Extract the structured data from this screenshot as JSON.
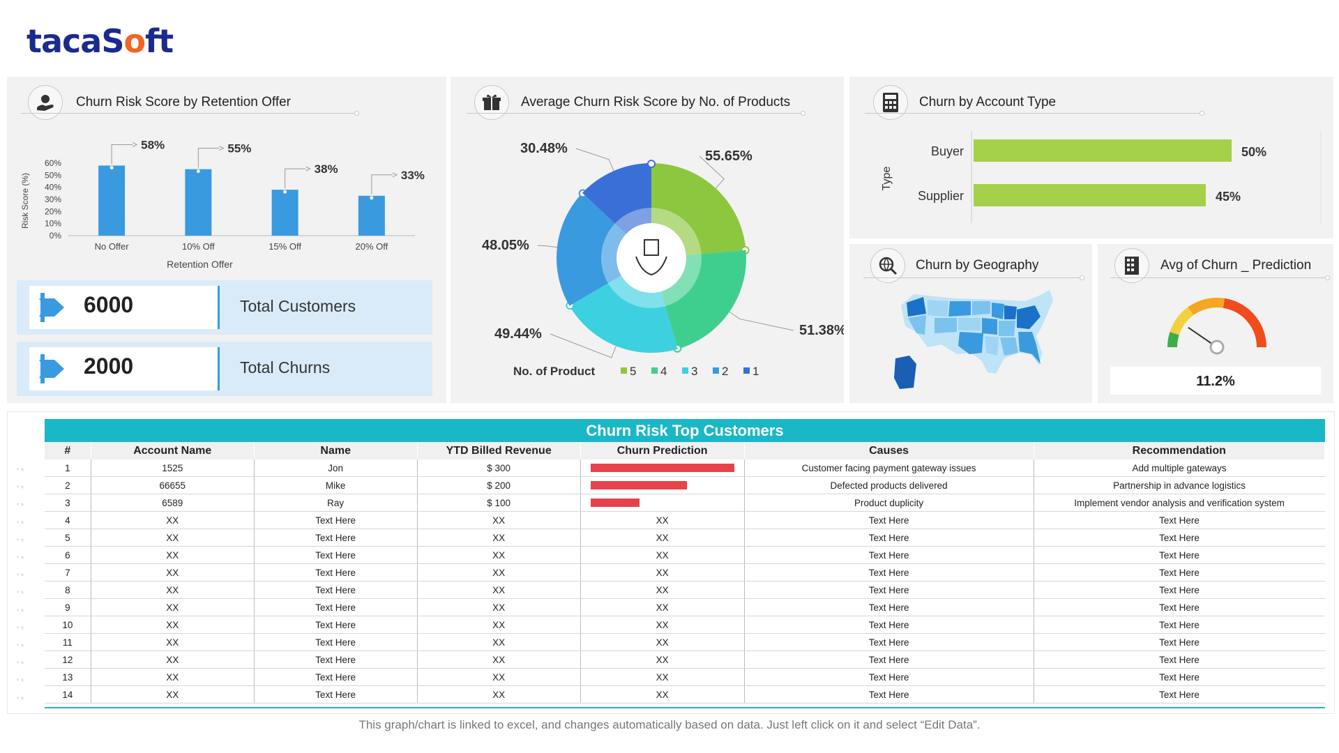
{
  "brand": {
    "logo_text_a": "taca",
    "logo_text_b": "S",
    "logo_text_c": "o",
    "logo_text_d": "ft"
  },
  "colors": {
    "blue": "#3a9ae0",
    "green": "#a4d04a",
    "teal": "#1ab7c7",
    "red": "#e8424a",
    "panel": "#f2f2f2"
  },
  "panels": {
    "retention": {
      "title": "Churn Risk Score by Retention Offer",
      "icon": "hand-money-icon"
    },
    "products": {
      "title": "Average Churn Risk Score by No. of Products",
      "icon": "gift-box-icon"
    },
    "account": {
      "title": "Churn by Account Type",
      "icon": "calculator-icon"
    },
    "geography": {
      "title": "Churn by Geography",
      "icon": "globe-search-icon"
    },
    "prediction": {
      "title": "Avg of Churn _ Prediction",
      "icon": "building-icon"
    }
  },
  "kpis": [
    {
      "value": "6000",
      "label": "Total Customers"
    },
    {
      "value": "2000",
      "label": "Total Churns"
    }
  ],
  "chart_data": [
    {
      "type": "bar",
      "title": "Churn Risk Score by Retention Offer",
      "xlabel": "Retention Offer",
      "ylabel": "Risk Score (%)",
      "categories": [
        "No Offer",
        "10% Off",
        "15% Off",
        "20% Off"
      ],
      "values": [
        58,
        55,
        38,
        33
      ],
      "data_labels": [
        "58%",
        "55%",
        "38%",
        "33%"
      ],
      "ylim": [
        0,
        60
      ],
      "yticks": [
        "60%",
        "50%",
        "40%",
        "30%",
        "20%",
        "10%",
        "0%"
      ],
      "color": "#3a9ae0"
    },
    {
      "type": "pie",
      "title": "Average Churn Risk Score by No. of Products",
      "legend_title": "No. of Product",
      "legend": [
        "5",
        "4",
        "3",
        "2",
        "1"
      ],
      "colors": [
        "#8dc63f",
        "#3ecf8e",
        "#3dd0e0",
        "#3a9ae0",
        "#3a6fd8"
      ],
      "values": [
        55.65,
        51.38,
        49.44,
        48.05,
        30.48
      ],
      "labels": [
        "55.65%",
        "51.38%",
        "49.44%",
        "48.05%",
        "30.48%"
      ]
    },
    {
      "type": "bar",
      "orientation": "horizontal",
      "title": "Churn by Account Type",
      "ylabel": "Type",
      "categories": [
        "Buyer",
        "Supplier"
      ],
      "values": [
        50,
        45
      ],
      "data_labels": [
        "50%",
        "45%"
      ],
      "color": "#a4d04a"
    }
  ],
  "gauge": {
    "value": 11.2,
    "label": "11.2%"
  },
  "table": {
    "title": "Churn Risk Top Customers",
    "headers": [
      "#",
      "Account Name",
      "Name",
      "YTD Billed Revenue",
      "Churn Prediction",
      "Causes",
      "Recommendation"
    ],
    "rows": [
      {
        "n": "1",
        "account": "1525",
        "name": "Jon",
        "revenue": "$ 300",
        "pred": 1.0,
        "pred_text": "",
        "cause": "Customer facing payment gateway issues",
        "rec": "Add multiple gateways"
      },
      {
        "n": "2",
        "account": "66655",
        "name": "Mike",
        "revenue": "$ 200",
        "pred": 0.67,
        "pred_text": "",
        "cause": "Defected products delivered",
        "rec": "Partnership in advance logistics"
      },
      {
        "n": "3",
        "account": "6589",
        "name": "Ray",
        "revenue": "$ 100",
        "pred": 0.34,
        "pred_text": "",
        "cause": "Product duplicity",
        "rec": "Implement vendor analysis and verification system"
      },
      {
        "n": "4",
        "account": "XX",
        "name": "Text Here",
        "revenue": "XX",
        "pred": null,
        "pred_text": "XX",
        "cause": "Text Here",
        "rec": "Text Here"
      },
      {
        "n": "5",
        "account": "XX",
        "name": "Text Here",
        "revenue": "XX",
        "pred": null,
        "pred_text": "XX",
        "cause": "Text Here",
        "rec": "Text Here"
      },
      {
        "n": "6",
        "account": "XX",
        "name": "Text Here",
        "revenue": "XX",
        "pred": null,
        "pred_text": "XX",
        "cause": "Text Here",
        "rec": "Text Here"
      },
      {
        "n": "7",
        "account": "XX",
        "name": "Text Here",
        "revenue": "XX",
        "pred": null,
        "pred_text": "XX",
        "cause": "Text Here",
        "rec": "Text Here"
      },
      {
        "n": "8",
        "account": "XX",
        "name": "Text Here",
        "revenue": "XX",
        "pred": null,
        "pred_text": "XX",
        "cause": "Text Here",
        "rec": "Text Here"
      },
      {
        "n": "9",
        "account": "XX",
        "name": "Text Here",
        "revenue": "XX",
        "pred": null,
        "pred_text": "XX",
        "cause": "Text Here",
        "rec": "Text Here"
      },
      {
        "n": "10",
        "account": "XX",
        "name": "Text Here",
        "revenue": "XX",
        "pred": null,
        "pred_text": "XX",
        "cause": "Text Here",
        "rec": "Text Here"
      },
      {
        "n": "11",
        "account": "XX",
        "name": "Text Here",
        "revenue": "XX",
        "pred": null,
        "pred_text": "XX",
        "cause": "Text Here",
        "rec": "Text Here"
      },
      {
        "n": "12",
        "account": "XX",
        "name": "Text Here",
        "revenue": "XX",
        "pred": null,
        "pred_text": "XX",
        "cause": "Text Here",
        "rec": "Text Here"
      },
      {
        "n": "13",
        "account": "XX",
        "name": "Text Here",
        "revenue": "XX",
        "pred": null,
        "pred_text": "XX",
        "cause": "Text Here",
        "rec": "Text Here"
      },
      {
        "n": "14",
        "account": "XX",
        "name": "Text Here",
        "revenue": "XX",
        "pred": null,
        "pred_text": "XX",
        "cause": "Text Here",
        "rec": "Text Here"
      }
    ]
  },
  "footer": "This graph/chart is linked to excel, and changes automatically based on data. Just left click on it and select “Edit Data”."
}
